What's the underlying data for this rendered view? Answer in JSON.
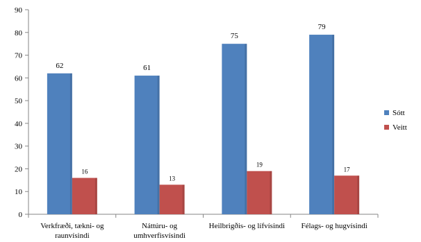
{
  "chart_data": {
    "type": "bar",
    "categories": [
      [
        "Verkfræði, tækni- og",
        "raunvísindi"
      ],
      [
        "Náttúru- og",
        "umhverfisvísindi"
      ],
      [
        "Heilbrigðis- og lífvísindi"
      ],
      [
        "Félags- og hugvísindi"
      ]
    ],
    "series": [
      {
        "name": "Sótt",
        "values": [
          62,
          61,
          75,
          79
        ],
        "color": "#4f81bd"
      },
      {
        "name": "Veitt",
        "values": [
          16,
          13,
          19,
          17
        ],
        "color": "#c0504d"
      }
    ],
    "ylim": [
      0,
      90
    ],
    "yticks": [
      0,
      10,
      20,
      30,
      40,
      50,
      60,
      70,
      80,
      90
    ],
    "grid": false,
    "legend_position": "right"
  }
}
